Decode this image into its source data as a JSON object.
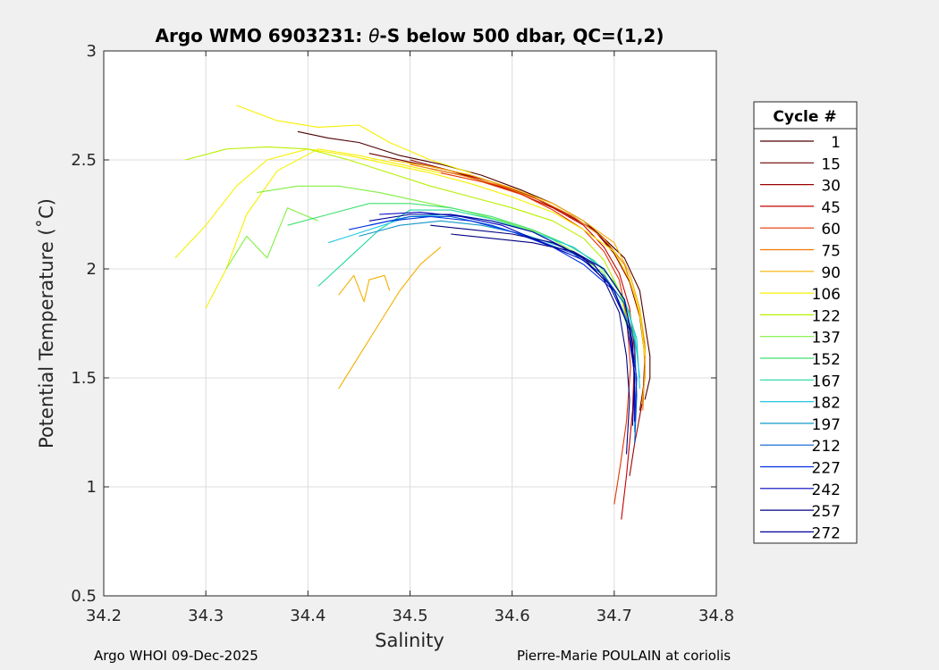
{
  "chart_data": {
    "type": "line",
    "title_prefix": "Argo WMO 6903231: ",
    "title_theta": "θ",
    "title_suffix": "-S below 500 dbar,  QC=(1,2)",
    "xlabel": "Salinity",
    "ylabel": "Potential Temperature (˚C)",
    "xlim": [
      34.2,
      34.8
    ],
    "ylim": [
      0.5,
      3
    ],
    "xticks": [
      "34.2",
      "34.3",
      "34.4",
      "34.5",
      "34.6",
      "34.7",
      "34.8"
    ],
    "yticks": [
      "0.5",
      "1",
      "1.5",
      "2",
      "2.5",
      "3"
    ],
    "grid": true,
    "legend": {
      "title": "Cycle #",
      "position": "right",
      "entries": [
        {
          "label": "1",
          "color": "#4d0000"
        },
        {
          "label": "15",
          "color": "#6e0000"
        },
        {
          "label": "30",
          "color": "#990000"
        },
        {
          "label": "45",
          "color": "#c40000"
        },
        {
          "label": "60",
          "color": "#e63300"
        },
        {
          "label": "75",
          "color": "#ee7700"
        },
        {
          "label": "90",
          "color": "#f5b000"
        },
        {
          "label": "106",
          "color": "#f7f000"
        },
        {
          "label": "122",
          "color": "#b8f000"
        },
        {
          "label": "137",
          "color": "#80f040"
        },
        {
          "label": "152",
          "color": "#40e070"
        },
        {
          "label": "167",
          "color": "#20d8a0"
        },
        {
          "label": "182",
          "color": "#20c8e0"
        },
        {
          "label": "197",
          "color": "#1098c8"
        },
        {
          "label": "212",
          "color": "#0060d0"
        },
        {
          "label": "227",
          "color": "#0030e0"
        },
        {
          "label": "242",
          "color": "#0000c0"
        },
        {
          "label": "257",
          "color": "#000080"
        },
        {
          "label": "272",
          "color": "#00009a"
        }
      ]
    },
    "series": [
      {
        "color": "#4d0000",
        "x": [
          34.39,
          34.42,
          34.45,
          34.49,
          34.53,
          34.57,
          34.61,
          34.64,
          34.67,
          34.69,
          34.71,
          34.725,
          34.73,
          34.735,
          34.735,
          34.73
        ],
        "y": [
          2.63,
          2.6,
          2.58,
          2.52,
          2.48,
          2.43,
          2.36,
          2.3,
          2.22,
          2.14,
          2.05,
          1.9,
          1.75,
          1.6,
          1.5,
          1.4
        ]
      },
      {
        "color": "#6e0000",
        "x": [
          34.46,
          34.5,
          34.54,
          34.58,
          34.62,
          34.65,
          34.68,
          34.7,
          34.715,
          34.725,
          34.73,
          34.73,
          34.725
        ],
        "y": [
          2.53,
          2.49,
          2.45,
          2.39,
          2.33,
          2.26,
          2.18,
          2.08,
          1.95,
          1.8,
          1.65,
          1.5,
          1.35
        ]
      },
      {
        "color": "#990000",
        "x": [
          34.5,
          34.54,
          34.58,
          34.62,
          34.65,
          34.68,
          34.7,
          34.715,
          34.725,
          34.73,
          34.728,
          34.72,
          34.715
        ],
        "y": [
          2.5,
          2.45,
          2.4,
          2.33,
          2.26,
          2.18,
          2.07,
          1.94,
          1.78,
          1.6,
          1.4,
          1.2,
          1.05
        ]
      },
      {
        "color": "#c40000",
        "x": [
          34.52,
          34.56,
          34.6,
          34.64,
          34.67,
          34.69,
          34.705,
          34.715,
          34.72,
          34.718,
          34.712,
          34.707
        ],
        "y": [
          2.46,
          2.42,
          2.36,
          2.28,
          2.2,
          2.1,
          1.98,
          1.82,
          1.62,
          1.35,
          1.05,
          0.85
        ]
      },
      {
        "color": "#e63300",
        "x": [
          34.53,
          34.57,
          34.61,
          34.64,
          34.67,
          34.69,
          34.705,
          34.712,
          34.716,
          34.712,
          34.706,
          34.7
        ],
        "y": [
          2.44,
          2.4,
          2.34,
          2.27,
          2.18,
          2.08,
          1.95,
          1.78,
          1.55,
          1.3,
          1.1,
          0.92
        ]
      },
      {
        "color": "#ee7700",
        "x": [
          34.5,
          34.55,
          34.59,
          34.63,
          34.66,
          34.69,
          34.71,
          34.72,
          34.728,
          34.73,
          34.728
        ],
        "y": [
          2.48,
          2.43,
          2.38,
          2.31,
          2.24,
          2.14,
          2.02,
          1.88,
          1.72,
          1.55,
          1.35
        ]
      },
      {
        "color": "#f5b000",
        "x": [
          34.48,
          34.52,
          34.56,
          34.6,
          34.64,
          34.67,
          34.7,
          34.715,
          34.725,
          34.73,
          34.73,
          34.727
        ],
        "y": [
          2.5,
          2.47,
          2.43,
          2.37,
          2.3,
          2.22,
          2.12,
          1.98,
          1.82,
          1.66,
          1.5,
          1.38
        ]
      },
      {
        "color": "#f7f000",
        "x": [
          34.27,
          34.3,
          34.33,
          34.36,
          34.4,
          34.44,
          34.48,
          34.52,
          34.56,
          34.6,
          34.64,
          34.67,
          34.7,
          34.715,
          34.725,
          34.73
        ],
        "y": [
          2.05,
          2.2,
          2.38,
          2.5,
          2.55,
          2.52,
          2.48,
          2.44,
          2.39,
          2.33,
          2.26,
          2.18,
          2.08,
          1.95,
          1.8,
          1.6
        ]
      },
      {
        "color": "#f7f000",
        "x": [
          34.3,
          34.32,
          34.34,
          34.37,
          34.41,
          34.45,
          34.49,
          34.53
        ],
        "y": [
          1.82,
          2.0,
          2.25,
          2.45,
          2.55,
          2.52,
          2.48,
          2.44
        ]
      },
      {
        "color": "#f5b000",
        "x": [
          34.43,
          34.45,
          34.47,
          34.49,
          34.51,
          34.53
        ],
        "y": [
          1.45,
          1.6,
          1.75,
          1.9,
          2.02,
          2.1
        ]
      },
      {
        "color": "#f5b000",
        "x": [
          34.43,
          34.445,
          34.455,
          34.46,
          34.475,
          34.48
        ],
        "y": [
          1.88,
          1.97,
          1.85,
          1.95,
          1.97,
          1.9
        ]
      },
      {
        "color": "#f7f000",
        "x": [
          34.33,
          34.37,
          34.41,
          34.45,
          34.48,
          34.52,
          34.56
        ],
        "y": [
          2.75,
          2.68,
          2.65,
          2.66,
          2.58,
          2.5,
          2.44
        ]
      },
      {
        "color": "#b8f000",
        "x": [
          34.28,
          34.32,
          34.36,
          34.4,
          34.44,
          34.48,
          34.52,
          34.56,
          34.6,
          34.64,
          34.67,
          34.69,
          34.705,
          34.715,
          34.72
        ],
        "y": [
          2.5,
          2.55,
          2.56,
          2.55,
          2.5,
          2.44,
          2.38,
          2.33,
          2.28,
          2.22,
          2.14,
          2.04,
          1.9,
          1.72,
          1.5
        ]
      },
      {
        "color": "#80f040",
        "x": [
          34.35,
          34.39,
          34.43,
          34.47,
          34.51,
          34.55,
          34.59,
          34.63,
          34.66,
          34.69,
          34.705,
          34.715
        ],
        "y": [
          2.35,
          2.38,
          2.38,
          2.35,
          2.31,
          2.27,
          2.22,
          2.16,
          2.08,
          1.98,
          1.85,
          1.7
        ]
      },
      {
        "color": "#80f040",
        "x": [
          34.32,
          34.34,
          34.36,
          34.38,
          34.41
        ],
        "y": [
          2.0,
          2.15,
          2.05,
          2.28,
          2.22
        ]
      },
      {
        "color": "#40e070",
        "x": [
          34.38,
          34.42,
          34.46,
          34.5,
          34.54,
          34.58,
          34.62,
          34.65,
          34.68,
          34.7,
          34.715,
          34.722
        ],
        "y": [
          2.2,
          2.25,
          2.3,
          2.3,
          2.28,
          2.24,
          2.18,
          2.12,
          2.04,
          1.94,
          1.8,
          1.62
        ]
      },
      {
        "color": "#20d8a0",
        "x": [
          34.41,
          34.44,
          34.47,
          34.5,
          34.54,
          34.58,
          34.62,
          34.66,
          34.69,
          34.71,
          34.72,
          34.725
        ],
        "y": [
          1.92,
          2.05,
          2.18,
          2.27,
          2.27,
          2.23,
          2.17,
          2.1,
          2.0,
          1.86,
          1.7,
          1.5
        ]
      },
      {
        "color": "#20c8e0",
        "x": [
          34.42,
          34.46,
          34.5,
          34.54,
          34.58,
          34.62,
          34.66,
          34.69,
          34.71,
          34.722,
          34.725
        ],
        "y": [
          2.12,
          2.18,
          2.24,
          2.25,
          2.22,
          2.17,
          2.1,
          2.0,
          1.86,
          1.68,
          1.45
        ]
      },
      {
        "color": "#1098c8",
        "x": [
          34.45,
          34.49,
          34.53,
          34.57,
          34.61,
          34.65,
          34.68,
          34.7,
          34.715,
          34.72,
          34.72
        ],
        "y": [
          2.15,
          2.2,
          2.22,
          2.2,
          2.16,
          2.1,
          2.02,
          1.9,
          1.74,
          1.5,
          1.25
        ]
      },
      {
        "color": "#0060d0",
        "x": [
          34.46,
          34.5,
          34.54,
          34.58,
          34.62,
          34.66,
          34.69,
          34.71,
          34.72,
          34.722,
          34.72
        ],
        "y": [
          2.2,
          2.24,
          2.24,
          2.2,
          2.14,
          2.07,
          1.97,
          1.84,
          1.66,
          1.42,
          1.2
        ]
      },
      {
        "color": "#0030e0",
        "x": [
          34.44,
          34.48,
          34.52,
          34.56,
          34.6,
          34.64,
          34.67,
          34.7,
          34.715,
          34.722,
          34.72
        ],
        "y": [
          2.18,
          2.22,
          2.24,
          2.22,
          2.17,
          2.1,
          2.02,
          1.9,
          1.72,
          1.5,
          1.3
        ]
      },
      {
        "color": "#0000c0",
        "x": [
          34.47,
          34.51,
          34.55,
          34.59,
          34.63,
          34.67,
          34.695,
          34.712,
          34.72,
          34.72
        ],
        "y": [
          2.25,
          2.26,
          2.24,
          2.2,
          2.12,
          2.04,
          1.93,
          1.76,
          1.52,
          1.3
        ]
      },
      {
        "color": "#000080",
        "x": [
          34.52,
          34.56,
          34.6,
          34.64,
          34.67,
          34.69,
          34.705,
          34.712,
          34.715,
          34.712
        ],
        "y": [
          2.2,
          2.18,
          2.16,
          2.12,
          2.05,
          1.95,
          1.8,
          1.6,
          1.4,
          1.15
        ]
      },
      {
        "color": "#000080",
        "x": [
          34.54,
          34.58,
          34.62,
          34.66,
          34.69,
          34.71,
          34.718,
          34.72
        ],
        "y": [
          2.16,
          2.14,
          2.12,
          2.08,
          2.0,
          1.86,
          1.66,
          1.45
        ]
      },
      {
        "color": "#00009a",
        "x": [
          34.46,
          34.5,
          34.54,
          34.58,
          34.62,
          34.65,
          34.68,
          34.7,
          34.715,
          34.72,
          34.718
        ],
        "y": [
          2.22,
          2.25,
          2.25,
          2.22,
          2.17,
          2.1,
          2.02,
          1.9,
          1.72,
          1.5,
          1.28
        ]
      }
    ]
  },
  "footer": {
    "left": "Argo WHOI 09-Dec-2025",
    "right": "Pierre-Marie POULAIN at coriolis"
  }
}
